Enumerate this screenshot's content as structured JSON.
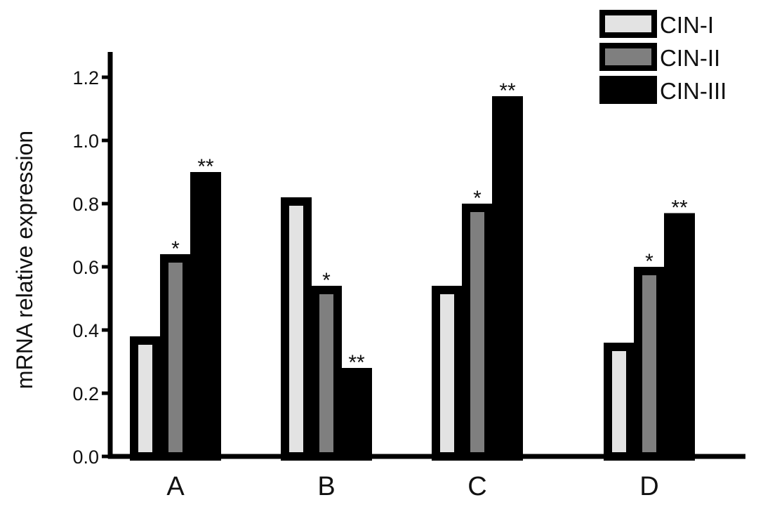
{
  "chart_data": {
    "type": "bar",
    "categories": [
      "A",
      "B",
      "C",
      "D"
    ],
    "series": [
      {
        "name": "CIN-I",
        "color": "#e3e3e3",
        "values": [
          0.38,
          0.82,
          0.54,
          0.36
        ]
      },
      {
        "name": "CIN-II",
        "color": "#7f7f7f",
        "values": [
          0.64,
          0.54,
          0.8,
          0.6
        ]
      },
      {
        "name": "CIN-III",
        "color": "#000000",
        "values": [
          0.9,
          0.28,
          1.14,
          0.77
        ]
      }
    ],
    "significance": [
      [
        "",
        "*",
        "**"
      ],
      [
        "",
        "*",
        "**"
      ],
      [
        "",
        "*",
        "**"
      ],
      [
        "",
        "*",
        "**"
      ]
    ],
    "ylabel": "mRNA relative expression",
    "xlabel": "",
    "ylim": [
      0,
      1.25
    ],
    "yticks": [
      "0.0",
      "0.2",
      "0.4",
      "0.6",
      "0.8",
      "1.0",
      "1.2"
    ],
    "grid": false,
    "legend_position": "top-right",
    "bar_outline_color": "#000000"
  }
}
